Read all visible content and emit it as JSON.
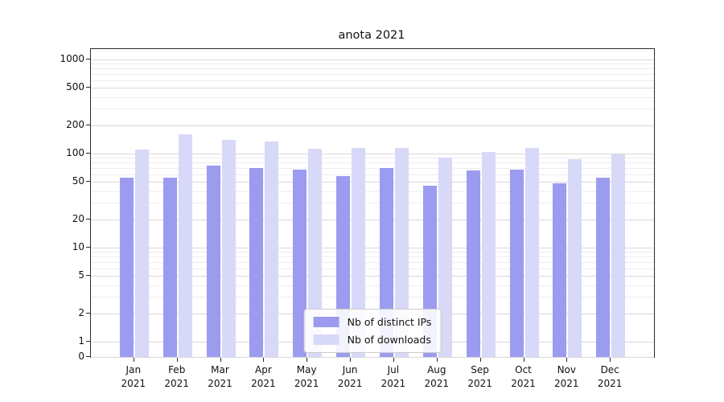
{
  "chart_data": {
    "type": "bar",
    "title": "anota 2021",
    "xlabel": "",
    "ylabel": "",
    "yscale": "symlog",
    "ylim": [
      0,
      1300
    ],
    "grid": true,
    "legend_position": "lower center",
    "yticks": [
      1000,
      500,
      200,
      100,
      50,
      20,
      10,
      5,
      2,
      1,
      0
    ],
    "categories": [
      "Jan 2021",
      "Feb 2021",
      "Mar 2021",
      "Apr 2021",
      "May 2021",
      "Jun 2021",
      "Jul 2021",
      "Aug 2021",
      "Sep 2021",
      "Oct 2021",
      "Nov 2021",
      "Dec 2021"
    ],
    "series": [
      {
        "name": "Nb of distinct IPs",
        "color": "#9b9bef",
        "values": [
          55,
          55,
          75,
          70,
          68,
          58,
          70,
          46,
          66,
          68,
          48,
          55
        ]
      },
      {
        "name": "Nb of downloads",
        "color": "#d8d8f9",
        "values": [
          110,
          160,
          140,
          135,
          112,
          115,
          116,
          90,
          105,
          115,
          88,
          98
        ]
      }
    ]
  }
}
